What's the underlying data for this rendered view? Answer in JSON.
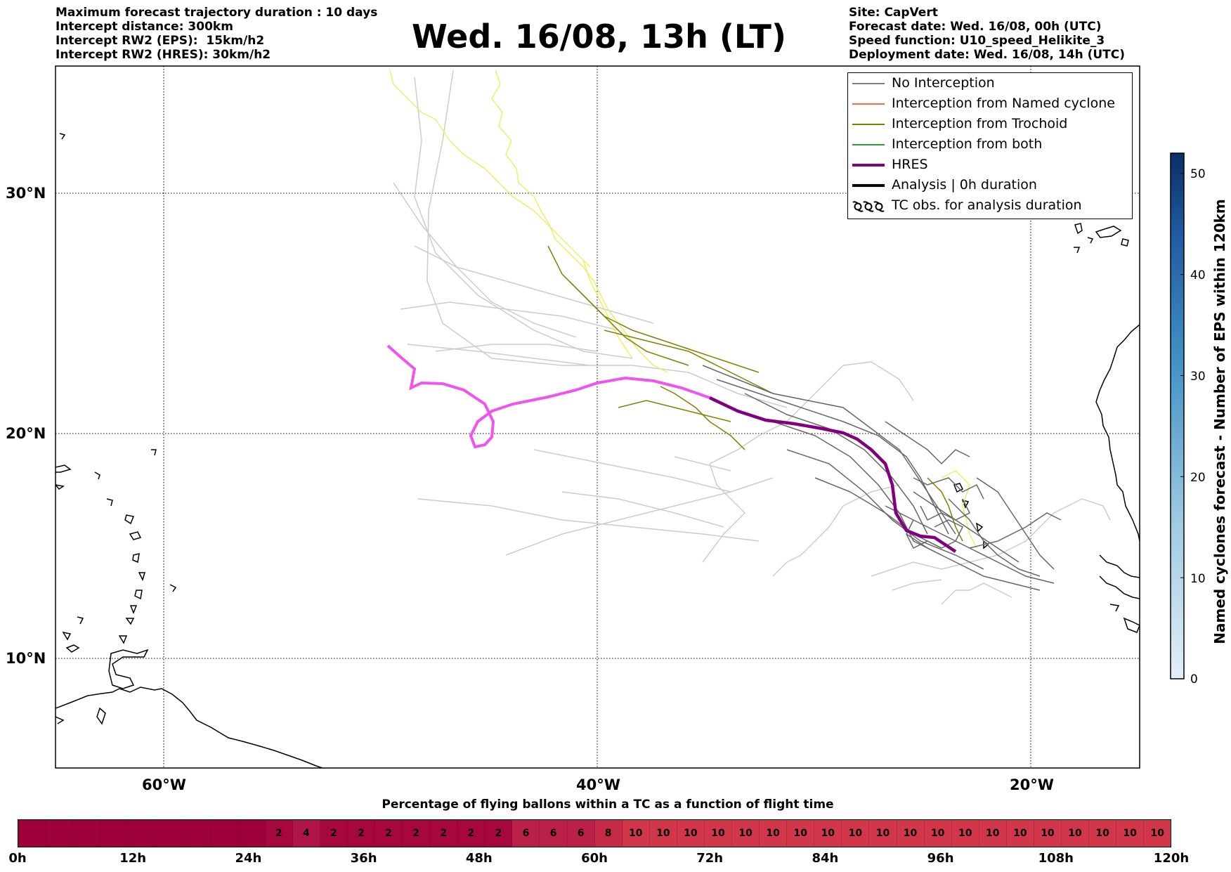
{
  "header": {
    "left_lines": [
      "Maximum forecast trajectory duration : 10 days",
      "Intercept distance: 300km",
      "Intercept RW2 (EPS):  15km/h2",
      "Intercept RW2 (HRES): 30km/h2"
    ],
    "title": "Wed. 16/08, 13h (LT)",
    "right_lines": [
      "Site: CapVert",
      "Forecast date: Wed. 16/08, 00h (UTC)",
      "Speed function: U10_speed_Helikite_3",
      "Deployment date: Wed. 16/08, 14h (UTC)"
    ]
  },
  "map": {
    "lon_labels": [
      "60°W",
      "40°W",
      "20°W"
    ],
    "lat_labels": [
      "30°N",
      "20°N",
      "10°N"
    ],
    "colors": {
      "no_interception": "#808080",
      "named_cyclone": "#ff6a3d",
      "trochoid": "#808000",
      "both": "#2ca02c",
      "hres": "#800080",
      "hres_bright": "#ee55ee",
      "eps_light": "#cccccc",
      "eps_yellow": "#eeee66"
    }
  },
  "legend": {
    "items": [
      {
        "label": "No Interception",
        "color": "#808080",
        "style": "thin"
      },
      {
        "label": "Interception from Named cyclone",
        "color": "#ff6a3d",
        "style": "thin"
      },
      {
        "label": "Interception from Trochoid",
        "color": "#808000",
        "style": "thin"
      },
      {
        "label": "Interception from both",
        "color": "#2ca02c",
        "style": "thin"
      },
      {
        "label": "HRES",
        "color": "#800080",
        "style": "thick"
      },
      {
        "label": "Analysis | 0h duration",
        "color": "#000000",
        "style": "thick"
      },
      {
        "label": "TC obs. for analysis duration",
        "color": "#000000",
        "style": "tc-symbol"
      }
    ]
  },
  "colorbar": {
    "label": "Named cyclones forecast - Number of EPS within 120km",
    "ticks": [
      "0",
      "10",
      "20",
      "30",
      "40",
      "50"
    ],
    "max": 52
  },
  "flight_bar": {
    "title": "Percentage of flying ballons within a TC as a function of flight time",
    "values": [
      0,
      0,
      0,
      0,
      0,
      0,
      0,
      0,
      0,
      2,
      4,
      2,
      2,
      2,
      2,
      2,
      2,
      2,
      6,
      6,
      6,
      8,
      10,
      10,
      10,
      10,
      10,
      10,
      10,
      10,
      10,
      10,
      10,
      10,
      10,
      10,
      10,
      10,
      10,
      10,
      10,
      10
    ],
    "tick_labels": [
      "0h",
      "12h",
      "24h",
      "36h",
      "48h",
      "60h",
      "72h",
      "84h",
      "96h",
      "108h",
      "120h"
    ]
  }
}
